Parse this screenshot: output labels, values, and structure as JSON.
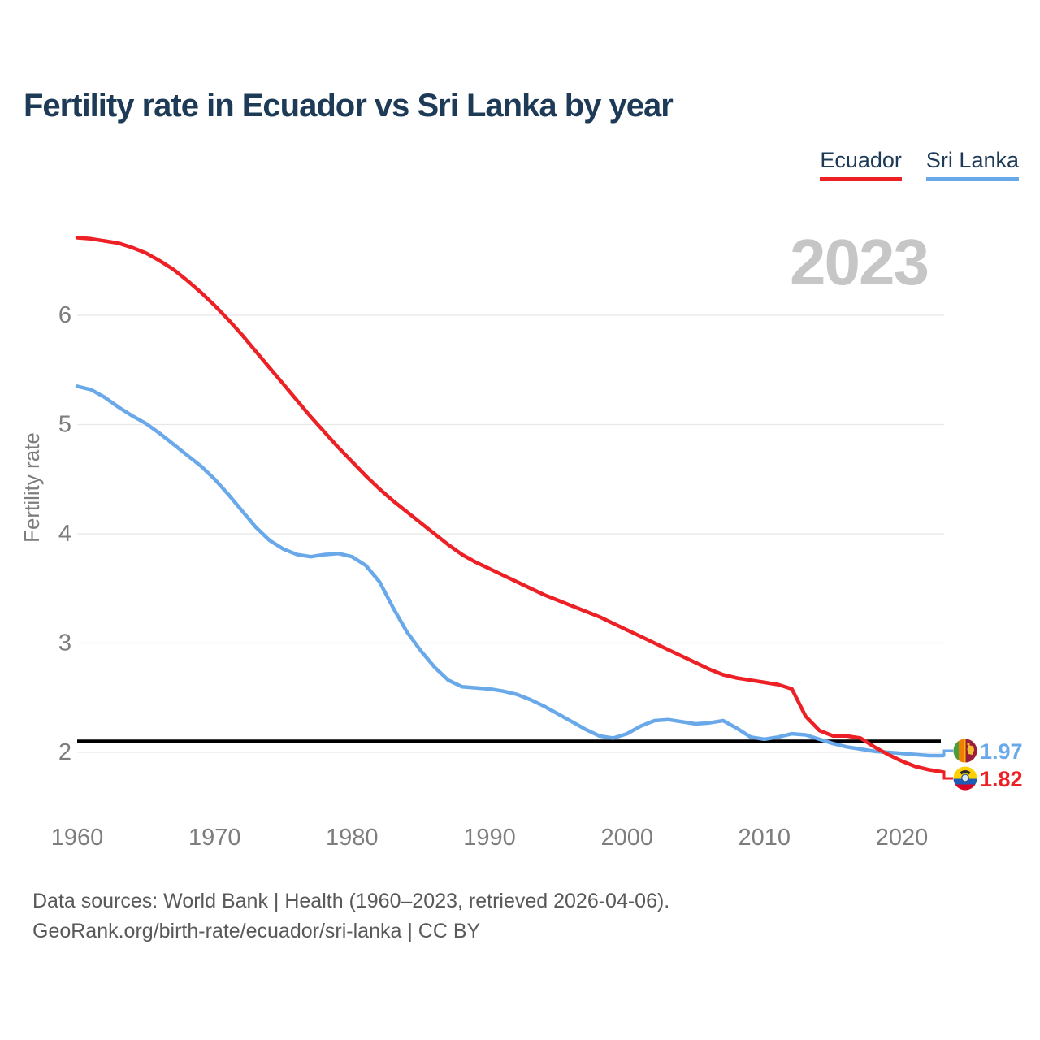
{
  "header": {
    "title": "Fertility rate in Ecuador vs Sri Lanka by year"
  },
  "legend": {
    "items": [
      {
        "label": "Ecuador",
        "color": "#ec2025"
      },
      {
        "label": "Sri Lanka",
        "color": "#6aa9e9"
      }
    ]
  },
  "chart_data": {
    "type": "line",
    "title": "Fertility rate in Ecuador vs Sri Lanka by year",
    "ylabel": "Fertility rate",
    "watermark": "2023",
    "x_range": [
      1960,
      2023
    ],
    "xticks": [
      "1960",
      "1970",
      "1980",
      "1990",
      "2000",
      "2010",
      "2020"
    ],
    "yticks": [
      "6",
      "5",
      "4",
      "3",
      "2"
    ],
    "ylim": [
      1.7,
      6.9
    ],
    "grid": "horizontal",
    "legend_position": "top-right",
    "reference_line": {
      "value": 2.1,
      "color": "#000000"
    },
    "series": [
      {
        "name": "Ecuador",
        "color": "#ec2025",
        "end_value_label": "1.82",
        "values": [
          6.71,
          6.7,
          6.68,
          6.66,
          6.62,
          6.57,
          6.5,
          6.42,
          6.32,
          6.21,
          6.09,
          5.96,
          5.82,
          5.67,
          5.52,
          5.37,
          5.22,
          5.07,
          4.93,
          4.79,
          4.66,
          4.53,
          4.41,
          4.3,
          4.2,
          4.1,
          4.0,
          3.9,
          3.81,
          3.74,
          3.68,
          3.62,
          3.56,
          3.5,
          3.44,
          3.39,
          3.34,
          3.29,
          3.24,
          3.18,
          3.12,
          3.06,
          3.0,
          2.94,
          2.88,
          2.82,
          2.76,
          2.71,
          2.68,
          2.66,
          2.64,
          2.62,
          2.58,
          2.33,
          2.2,
          2.15,
          2.15,
          2.13,
          2.05,
          1.98,
          1.92,
          1.87,
          1.84,
          1.82
        ]
      },
      {
        "name": "Sri Lanka",
        "color": "#6aa9e9",
        "end_value_label": "1.97",
        "values": [
          5.35,
          5.32,
          5.25,
          5.16,
          5.08,
          5.01,
          4.92,
          4.82,
          4.72,
          4.62,
          4.5,
          4.36,
          4.21,
          4.06,
          3.94,
          3.86,
          3.81,
          3.79,
          3.81,
          3.82,
          3.79,
          3.71,
          3.56,
          3.32,
          3.1,
          2.93,
          2.78,
          2.66,
          2.6,
          2.59,
          2.58,
          2.56,
          2.53,
          2.48,
          2.42,
          2.35,
          2.28,
          2.21,
          2.15,
          2.13,
          2.17,
          2.24,
          2.29,
          2.3,
          2.28,
          2.26,
          2.27,
          2.29,
          2.22,
          2.14,
          2.12,
          2.14,
          2.17,
          2.16,
          2.12,
          2.08,
          2.05,
          2.03,
          2.01,
          2.0,
          1.99,
          1.98,
          1.97,
          1.97
        ]
      }
    ]
  },
  "end_labels": {
    "sri_lanka": {
      "country": "Sri Lanka",
      "value": "1.97"
    },
    "ecuador": {
      "country": "Ecuador",
      "value": "1.82"
    }
  },
  "footer": {
    "line1": "Data sources: World Bank | Health (1960–2023, retrieved 2026-04-06).",
    "line2": "GeoRank.org/birth-rate/ecuador/sri-lanka | CC BY"
  }
}
